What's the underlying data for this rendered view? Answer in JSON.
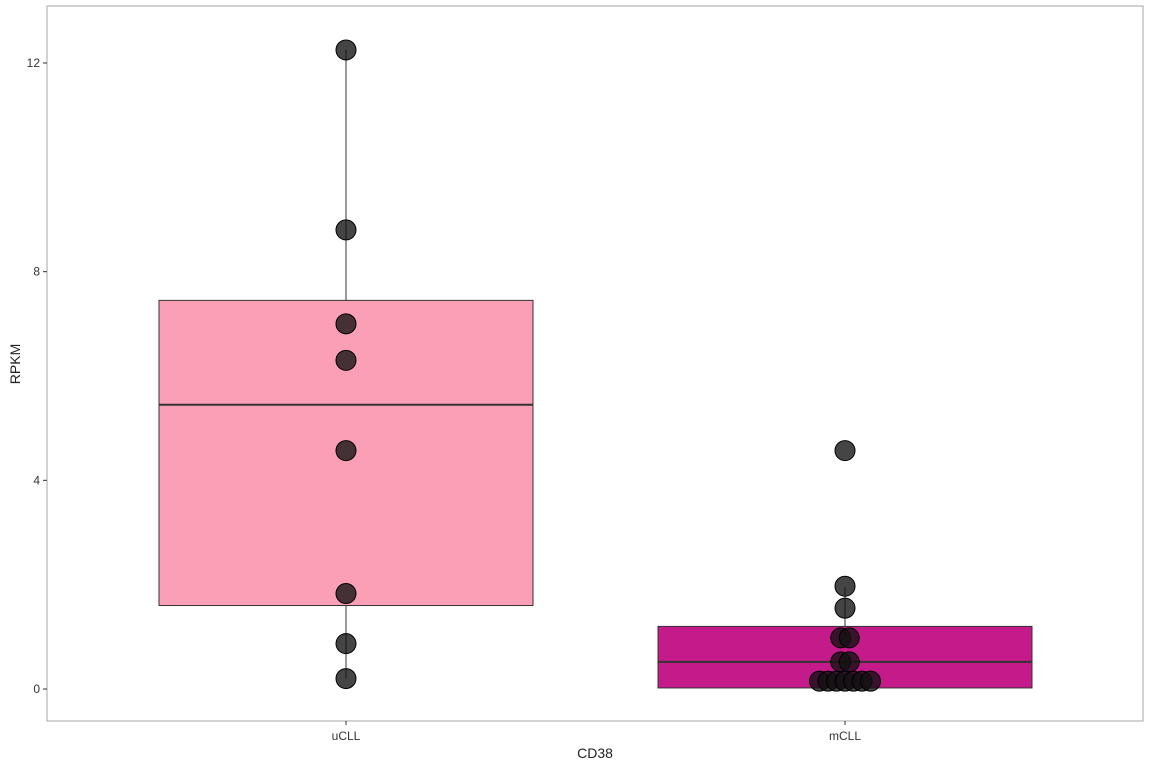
{
  "chart_data": {
    "type": "box",
    "title": "",
    "xlabel": "CD38",
    "ylabel": "RPKM",
    "ylim": [
      -0.6,
      13.0
    ],
    "yticks": [
      0,
      4,
      8,
      12
    ],
    "grid": false,
    "legend": "none",
    "categories": [
      "uCLL",
      "mCLL"
    ],
    "groups": [
      {
        "category": "uCLL",
        "fill": "#fa9fb5",
        "box": {
          "lower_whisker": 0.2,
          "q1": 1.6,
          "median": 5.45,
          "q3": 7.45,
          "upper_whisker": 12.25
        },
        "points": [
          12.25,
          8.8,
          7.0,
          6.3,
          4.57,
          1.83,
          0.87,
          0.2
        ]
      },
      {
        "category": "mCLL",
        "fill": "#c51b8a",
        "box": {
          "lower_whisker": 0.02,
          "q1": 0.02,
          "median": 0.52,
          "q3": 1.2,
          "upper_whisker": 1.95
        },
        "points": [
          4.57,
          1.97,
          1.55,
          0.98,
          0.98,
          0.52,
          0.52,
          0.15,
          0.15,
          0.15,
          0.15,
          0.15,
          0.15,
          0.15
        ]
      }
    ],
    "point_color": "#111111"
  }
}
